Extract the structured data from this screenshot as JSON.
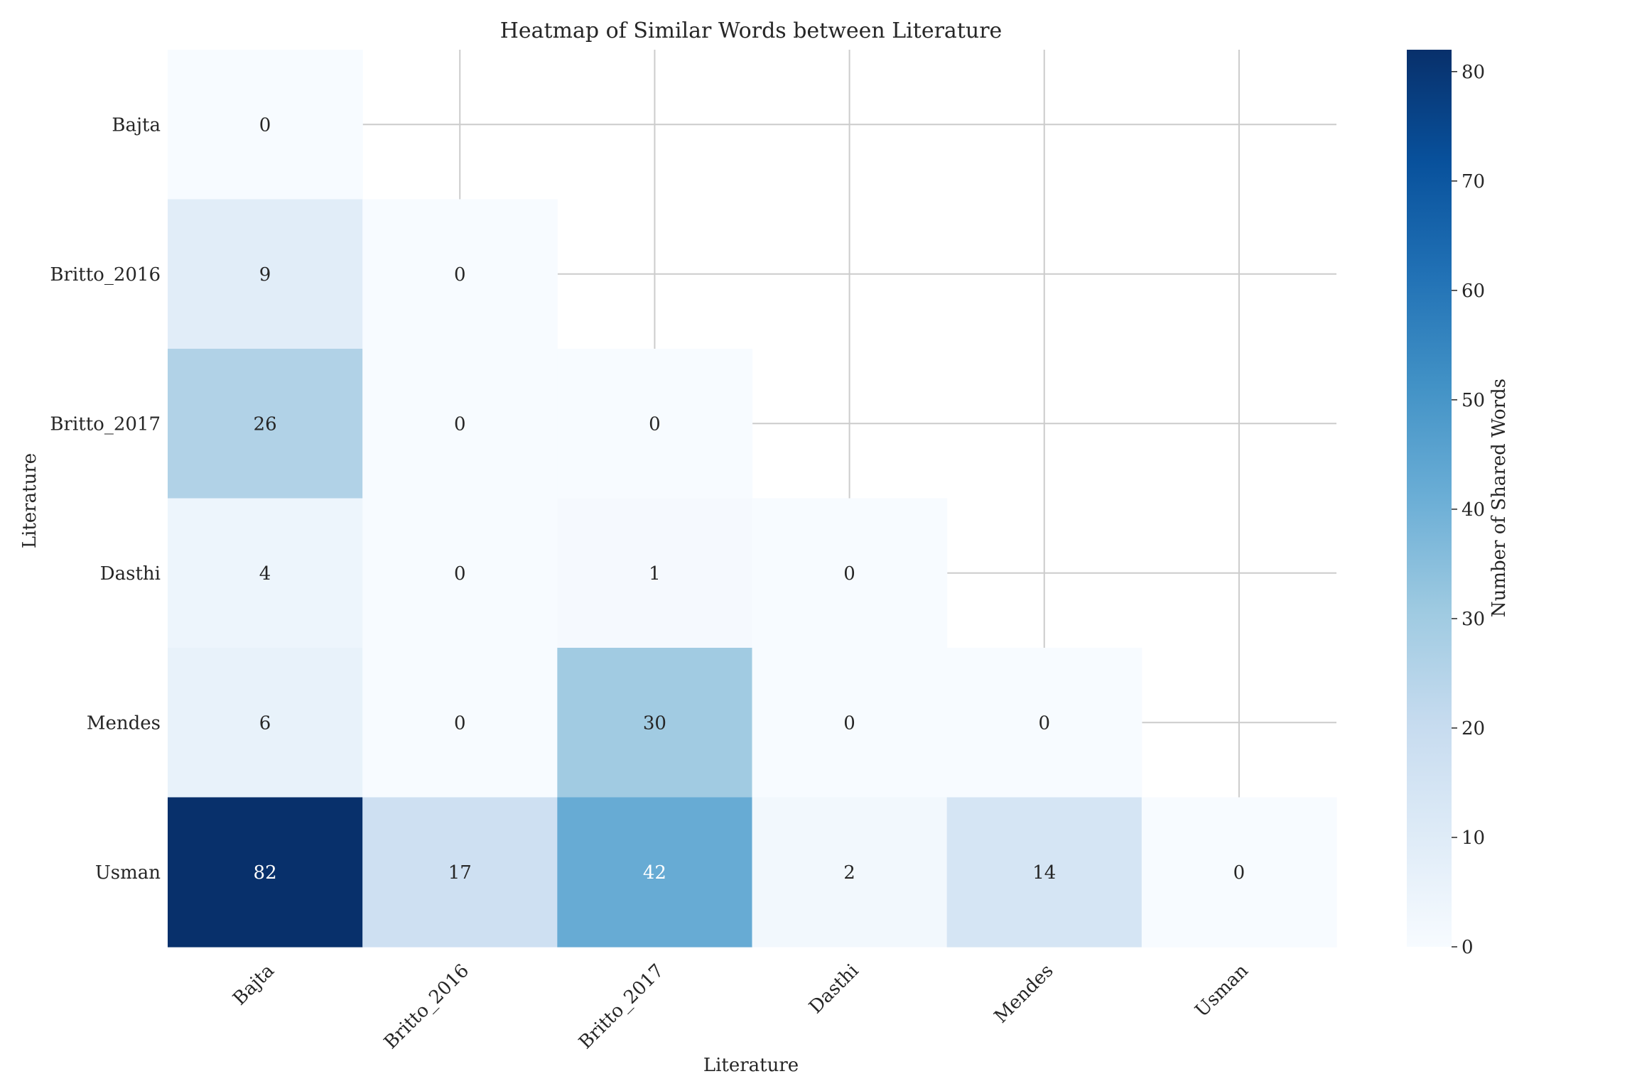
{
  "chart_data": {
    "type": "heatmap",
    "title": "Heatmap of Similar Words between Literature",
    "xlabel": "Literature",
    "ylabel": "Literature",
    "colorbar_label": "Number of Shared Words",
    "colormap": "Blues",
    "vmin": 0,
    "vmax": 82,
    "colorbar_ticks": [
      0,
      10,
      20,
      30,
      40,
      50,
      60,
      70,
      80
    ],
    "categories": [
      "Bajta",
      "Britto_2016",
      "Britto_2017",
      "Dasthi",
      "Mendes",
      "Usman"
    ],
    "masked": "upper-triangle",
    "grid": true,
    "matrix": [
      [
        0,
        null,
        null,
        null,
        null,
        null
      ],
      [
        9,
        0,
        null,
        null,
        null,
        null
      ],
      [
        26,
        0,
        0,
        null,
        null,
        null
      ],
      [
        4,
        0,
        1,
        0,
        null,
        null
      ],
      [
        6,
        0,
        30,
        0,
        0,
        null
      ],
      [
        82,
        17,
        42,
        2,
        14,
        0
      ]
    ]
  }
}
